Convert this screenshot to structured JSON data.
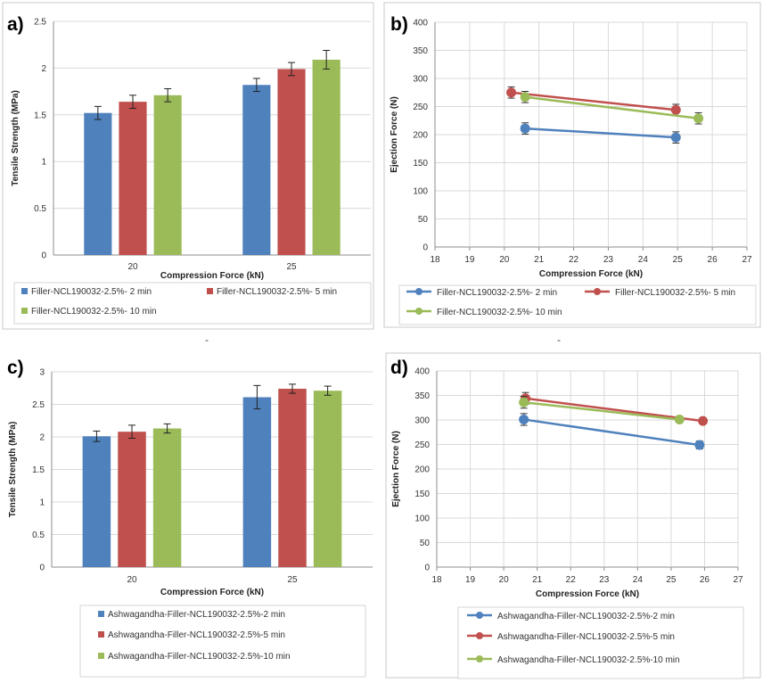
{
  "colors": {
    "blue": "#4f81bd",
    "red": "#c0504d",
    "green": "#9bbb59",
    "grid": "#d9d9d9",
    "axis": "#8c8c8c",
    "border": "#c9c9c9"
  },
  "stray_marks": [
    "-",
    "-"
  ],
  "chart_data": [
    {
      "id": "a",
      "panel_label": "a)",
      "type": "bar",
      "xlabel": "Compression Force (kN)",
      "ylabel": "Tensile Strength (MPa)",
      "ylim": [
        0,
        2.5
      ],
      "yticks": [
        "0",
        "0.5",
        "1",
        "1.5",
        "2",
        "2.5"
      ],
      "categories": [
        "20",
        "25"
      ],
      "legend_position": "bottom",
      "series": [
        {
          "name": "Filler-NCL190032-2.5%- 2 min",
          "color": "#4f81bd",
          "values": [
            1.52,
            1.82
          ],
          "errors": [
            0.07,
            0.07
          ]
        },
        {
          "name": "Filler-NCL190032-2.5%- 5 min",
          "color": "#c0504d",
          "values": [
            1.64,
            1.99
          ],
          "errors": [
            0.07,
            0.07
          ]
        },
        {
          "name": "Filler-NCL190032-2.5%- 10 min",
          "color": "#9bbb59",
          "values": [
            1.71,
            2.09
          ],
          "errors": [
            0.07,
            0.1
          ]
        }
      ]
    },
    {
      "id": "b",
      "panel_label": "b)",
      "type": "scatter",
      "xlabel": "Compression Force (kN)",
      "ylabel": "Ejection Force (N)",
      "xlim": [
        18,
        27
      ],
      "ylim": [
        0,
        400
      ],
      "xticks": [
        "18",
        "19",
        "20",
        "21",
        "22",
        "23",
        "24",
        "25",
        "26",
        "27"
      ],
      "yticks": [
        "0",
        "50",
        "100",
        "150",
        "200",
        "250",
        "300",
        "350",
        "400"
      ],
      "legend_position": "bottom",
      "series": [
        {
          "name": "Filler-NCL190032-2.5%- 2 min",
          "color": "#4f81bd",
          "x": [
            20.6,
            24.95
          ],
          "y": [
            211,
            195
          ],
          "errors": [
            10,
            10
          ]
        },
        {
          "name": "Filler-NCL190032-2.5%- 5 min",
          "color": "#c0504d",
          "x": [
            20.2,
            24.95
          ],
          "y": [
            275,
            244
          ],
          "errors": [
            10,
            10
          ]
        },
        {
          "name": "Filler-NCL190032-2.5%- 10 min",
          "color": "#9bbb59",
          "x": [
            20.6,
            25.6
          ],
          "y": [
            267,
            229
          ],
          "errors": [
            10,
            10
          ]
        }
      ]
    },
    {
      "id": "c",
      "panel_label": "c)",
      "type": "bar",
      "xlabel": "Compression Force (kN)",
      "ylabel": "Tensile Strength (MPa)",
      "ylim": [
        0,
        3
      ],
      "yticks": [
        "0",
        "0.5",
        "1",
        "1.5",
        "2",
        "2.5",
        "3"
      ],
      "categories": [
        "20",
        "25"
      ],
      "legend_position": "bottom",
      "series": [
        {
          "name": "Ashwagandha-Filler-NCL190032-2.5%-2 min",
          "color": "#4f81bd",
          "values": [
            2.01,
            2.61
          ],
          "errors": [
            0.08,
            0.18
          ]
        },
        {
          "name": "Ashwagandha-Filler-NCL190032-2.5%-5 min",
          "color": "#c0504d",
          "values": [
            2.08,
            2.74
          ],
          "errors": [
            0.1,
            0.07
          ]
        },
        {
          "name": "Ashwagandha-Filler-NCL190032-2.5%-10 min",
          "color": "#9bbb59",
          "values": [
            2.13,
            2.71
          ],
          "errors": [
            0.07,
            0.07
          ]
        }
      ]
    },
    {
      "id": "d",
      "panel_label": "d)",
      "type": "scatter",
      "xlabel": "Compression Force (kN)",
      "ylabel": "Ejection Force (N)",
      "xlim": [
        18,
        27
      ],
      "ylim": [
        0,
        400
      ],
      "xticks": [
        "18",
        "19",
        "20",
        "21",
        "22",
        "23",
        "24",
        "25",
        "26",
        "27"
      ],
      "yticks": [
        "0",
        "50",
        "100",
        "150",
        "200",
        "250",
        "300",
        "350",
        "400"
      ],
      "legend_position": "bottom",
      "series": [
        {
          "name": "Ashwagandha-Filler-NCL190032-2.5%-2 min",
          "color": "#4f81bd",
          "x": [
            20.6,
            25.85
          ],
          "y": [
            301,
            249
          ],
          "errors": [
            12,
            8
          ]
        },
        {
          "name": "Ashwagandha-Filler-NCL190032-2.5%-5 min",
          "color": "#c0504d",
          "x": [
            20.65,
            25.95
          ],
          "y": [
            344,
            298
          ],
          "errors": [
            12,
            6
          ]
        },
        {
          "name": "Ashwagandha-Filler-NCL190032-2.5%-10 min",
          "color": "#9bbb59",
          "x": [
            20.6,
            25.25
          ],
          "y": [
            336,
            301
          ],
          "errors": [
            12,
            5
          ]
        }
      ]
    }
  ]
}
